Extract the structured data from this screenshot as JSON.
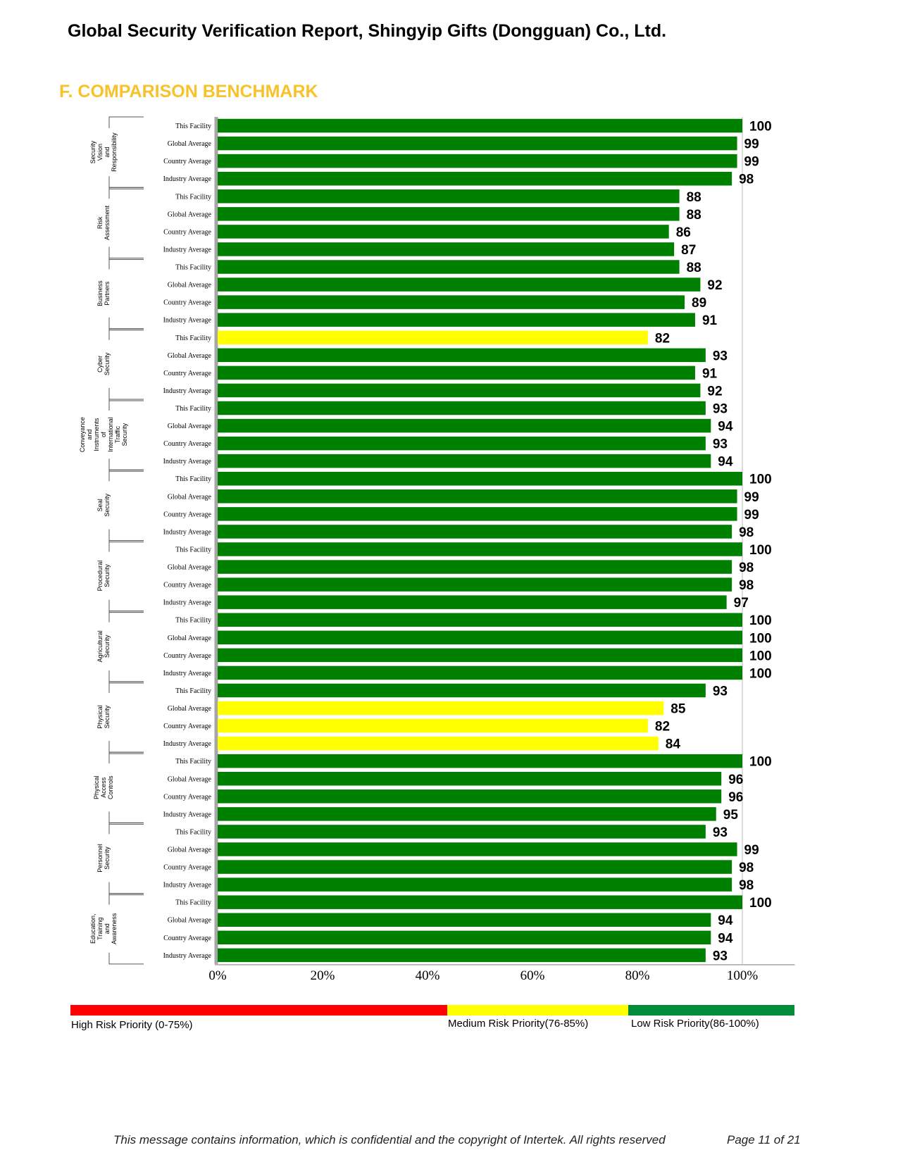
{
  "header": {
    "title": "Global Security Verification Report, Shingyip Gifts (Dongguan) Co., Ltd."
  },
  "section": {
    "title": "F. COMPARISON BENCHMARK"
  },
  "chart_data": {
    "type": "bar",
    "orientation": "horizontal",
    "x_ticks": [
      "0%",
      "20%",
      "40%",
      "60%",
      "80%",
      "100%"
    ],
    "xlim": [
      0,
      110
    ],
    "grid": false,
    "colors": {
      "low": "#008000",
      "medium": "#ffff00"
    },
    "row_labels": [
      "This Facility",
      "Global Average",
      "Country Average",
      "Industry Average"
    ],
    "groups": [
      {
        "label": [
          "Security",
          "Vision",
          "and",
          "Responsibility"
        ],
        "values": [
          100,
          99,
          99,
          98
        ]
      },
      {
        "label": [
          "Risk",
          "Assessment"
        ],
        "values": [
          88,
          88,
          86,
          87
        ]
      },
      {
        "label": [
          "Business",
          "Partners"
        ],
        "values": [
          88,
          92,
          89,
          91
        ]
      },
      {
        "label": [
          "Cyber",
          "Security"
        ],
        "values": [
          82,
          93,
          91,
          92
        ]
      },
      {
        "label": [
          "Conveyance",
          "and",
          "Instruments",
          "of",
          "International",
          "Traffic",
          "Security"
        ],
        "values": [
          93,
          94,
          93,
          94
        ]
      },
      {
        "label": [
          "Seal",
          "Security"
        ],
        "values": [
          100,
          99,
          99,
          98
        ]
      },
      {
        "label": [
          "Procedural",
          "Security"
        ],
        "values": [
          100,
          98,
          98,
          97
        ]
      },
      {
        "label": [
          "Agricultural",
          "Security"
        ],
        "values": [
          100,
          100,
          100,
          100
        ]
      },
      {
        "label": [
          "Physical",
          "Security"
        ],
        "values": [
          93,
          85,
          82,
          84
        ]
      },
      {
        "label": [
          "Physical",
          "Access",
          "Controls"
        ],
        "values": [
          100,
          96,
          96,
          95
        ]
      },
      {
        "label": [
          "Personnel",
          "Security"
        ],
        "values": [
          93,
          99,
          98,
          98
        ]
      },
      {
        "label": [
          "Education,",
          "Training",
          "and",
          "Awareness"
        ],
        "values": [
          100,
          94,
          94,
          93
        ]
      }
    ]
  },
  "legend": {
    "high": {
      "label": "High Risk Priority (0-75%)",
      "color": "#ff0000"
    },
    "medium": {
      "label": "Medium Risk Priority(76-85%)",
      "color": "#ffff00"
    },
    "low": {
      "label": "Low Risk Priority(86-100%)",
      "color": "#008c3a"
    }
  },
  "footer": {
    "text": "This message contains information, which is confidential and the copyright of Intertek. All rights reserved",
    "page": "Page 11 of 21"
  }
}
